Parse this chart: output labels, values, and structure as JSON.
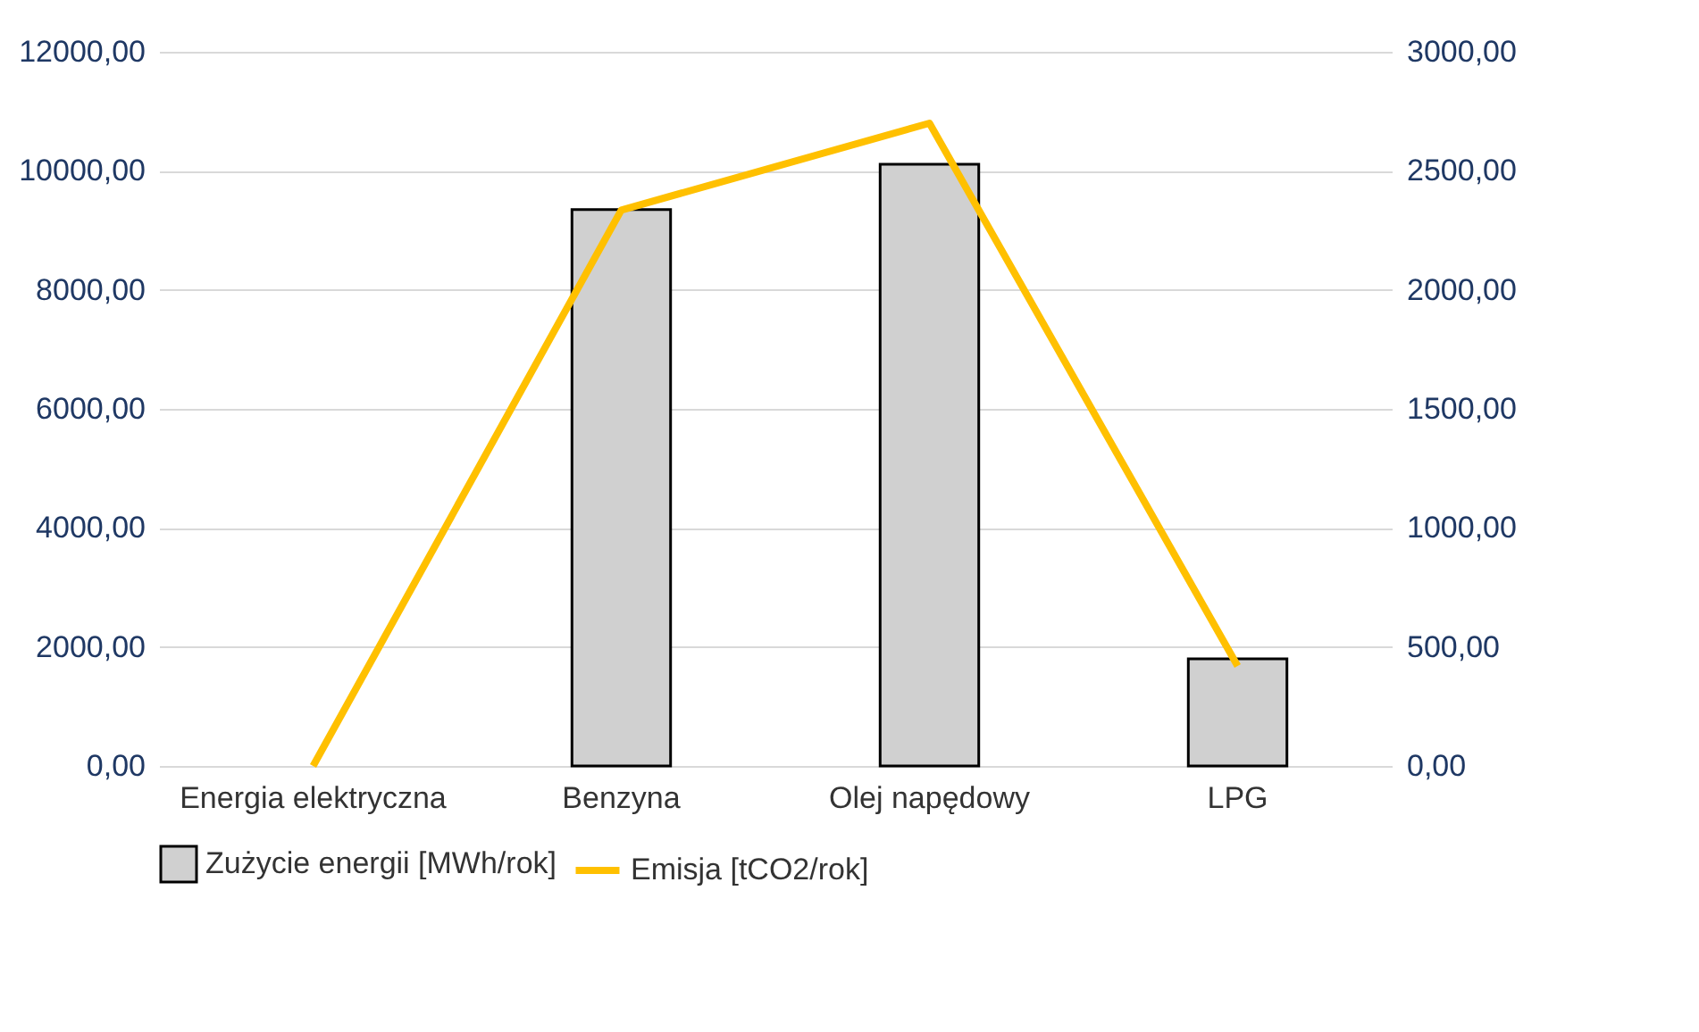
{
  "chart_data": {
    "type": "bar",
    "categories": [
      "Energia elektryczna",
      "Benzyna",
      "Olej napędowy",
      "LPG"
    ],
    "series": [
      {
        "name": "Zużycie energii [MWh/rok]",
        "color": "#d0d0d0",
        "values": [
          null,
          9350,
          10110,
          1800
        ]
      },
      {
        "name": "Emisja [tCO2/rok]",
        "type": "line",
        "axis": "y2",
        "color": "#ffc000",
        "values": [
          0,
          2335,
          2700,
          420
        ]
      }
    ],
    "ylim": [
      0,
      12000
    ],
    "yticks": [
      {
        "value": 0,
        "label": "0,00"
      },
      {
        "value": 2000,
        "label": "2000,00"
      },
      {
        "value": 4000,
        "label": "4000,00"
      },
      {
        "value": 6000,
        "label": "6000,00"
      },
      {
        "value": 8000,
        "label": "8000,00"
      },
      {
        "value": 10000,
        "label": "10000,00"
      },
      {
        "value": 12000,
        "label": "12000,00"
      }
    ],
    "y2lim": [
      0,
      3000
    ],
    "y2ticks": [
      {
        "value": 0,
        "label": "0,00"
      },
      {
        "value": 500,
        "label": "500,00"
      },
      {
        "value": 1000,
        "label": "1000,00"
      },
      {
        "value": 1500,
        "label": "1500,00"
      },
      {
        "value": 2000,
        "label": "2000,00"
      },
      {
        "value": 2500,
        "label": "2500,00"
      },
      {
        "value": 3000,
        "label": "3000,00"
      }
    ],
    "grid": "y",
    "legend": "bottom",
    "marker": "none",
    "line_style": "solid"
  }
}
